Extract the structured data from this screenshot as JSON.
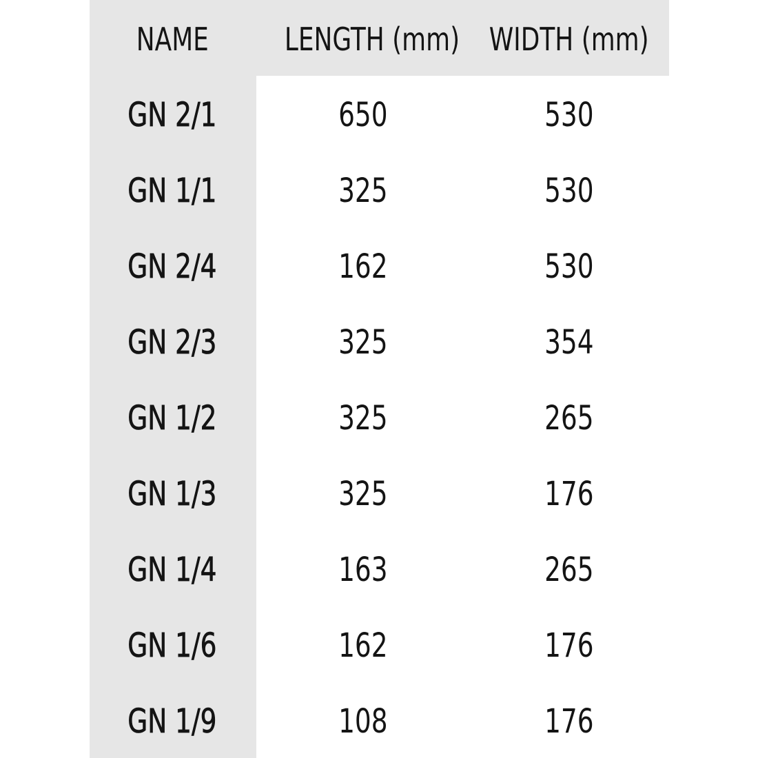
{
  "table": {
    "header": [
      "NAME",
      "LENGTH (mm)",
      "WIDTH (mm)"
    ],
    "rows": [
      [
        "GN 2/1",
        650,
        530
      ],
      [
        "GN 1/1",
        325,
        530
      ],
      [
        "GN 2/4",
        162,
        530
      ],
      [
        "GN 2/3",
        325,
        354
      ],
      [
        "GN 1/2",
        325,
        265
      ],
      [
        "GN 1/3",
        325,
        176
      ],
      [
        "GN 1/4",
        163,
        265
      ],
      [
        "GN 1/6",
        162,
        176
      ],
      [
        "GN 1/9",
        108,
        176
      ]
    ]
  }
}
